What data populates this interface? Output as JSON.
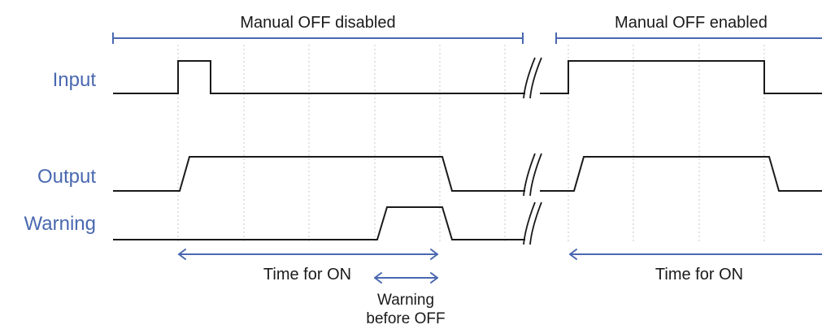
{
  "colors": {
    "signal_label": "#4a68b0",
    "bracket": "#4a68b0",
    "arrow": "#4a68b0",
    "waveform": "#1a1a1a",
    "text": "#1a1a1a",
    "grid": "#c8c8c8"
  },
  "sections": {
    "disabled": "Manual OFF disabled",
    "enabled": "Manual OFF enabled"
  },
  "signals": {
    "input": "Input",
    "output": "Output",
    "warning": "Warning"
  },
  "annotations": {
    "time_on_1": "Time for ON",
    "time_on_2": "Time for ON",
    "warning_line1": "Warning",
    "warning_line2": "before OFF"
  }
}
